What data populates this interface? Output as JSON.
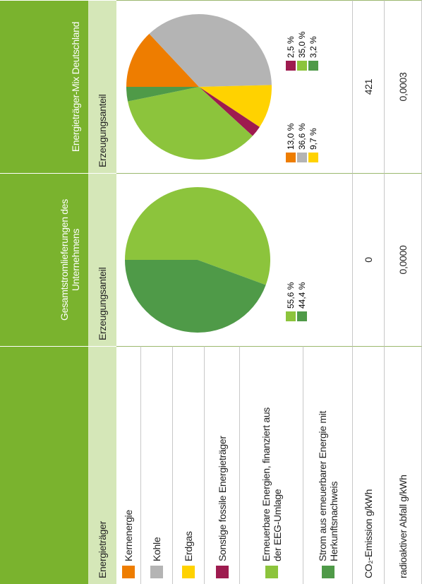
{
  "table": {
    "headers": [
      "Gesamtstromlieferungen des Unternehmens",
      "Energieträger-Mix Deutschland"
    ],
    "subheaders": [
      "Energieträger",
      "Erzeugungsanteil",
      "Erzeugungsanteil"
    ],
    "sources": [
      {
        "name": "Kernenergie",
        "color": "#ee7d00"
      },
      {
        "name": "Kohle",
        "color": "#b4b4b4"
      },
      {
        "name": "Erdgas",
        "color": "#ffd200"
      },
      {
        "name": "Sonstige fossile Energieträger",
        "color": "#9e1b4f"
      },
      {
        "name": "Erneuerbare Energien, finanziert aus der EEG-Umlage",
        "color": "#8cc43c"
      },
      {
        "name": "Strom aus erneuerbarer Energie mit Herkunftsnachweis",
        "color": "#4f9a48"
      }
    ],
    "rows": [
      [
        "CO₂-Emission g/kWh",
        "0",
        "421"
      ],
      [
        "radioaktiver Abfall g/kWh",
        "0,0000",
        "0,0003"
      ]
    ]
  },
  "chart_data": [
    {
      "type": "pie",
      "values": [
        55.6,
        44.4
      ],
      "value_labels": [
        "55,6 %",
        "44,4 %"
      ],
      "colors": [
        "#8cc43c",
        "#4f9a48"
      ]
    },
    {
      "type": "pie",
      "values": [
        13.0,
        36.6,
        9.7,
        2.5,
        35.0,
        3.2
      ],
      "value_labels": [
        "13,0 %",
        "36,6 %",
        "9,7 %",
        "2,5 %",
        "35,0 %",
        "3,2 %"
      ],
      "colors": [
        "#ee7d00",
        "#b4b4b4",
        "#ffd200",
        "#9e1b4f",
        "#8cc43c",
        "#4f9a48"
      ]
    }
  ]
}
